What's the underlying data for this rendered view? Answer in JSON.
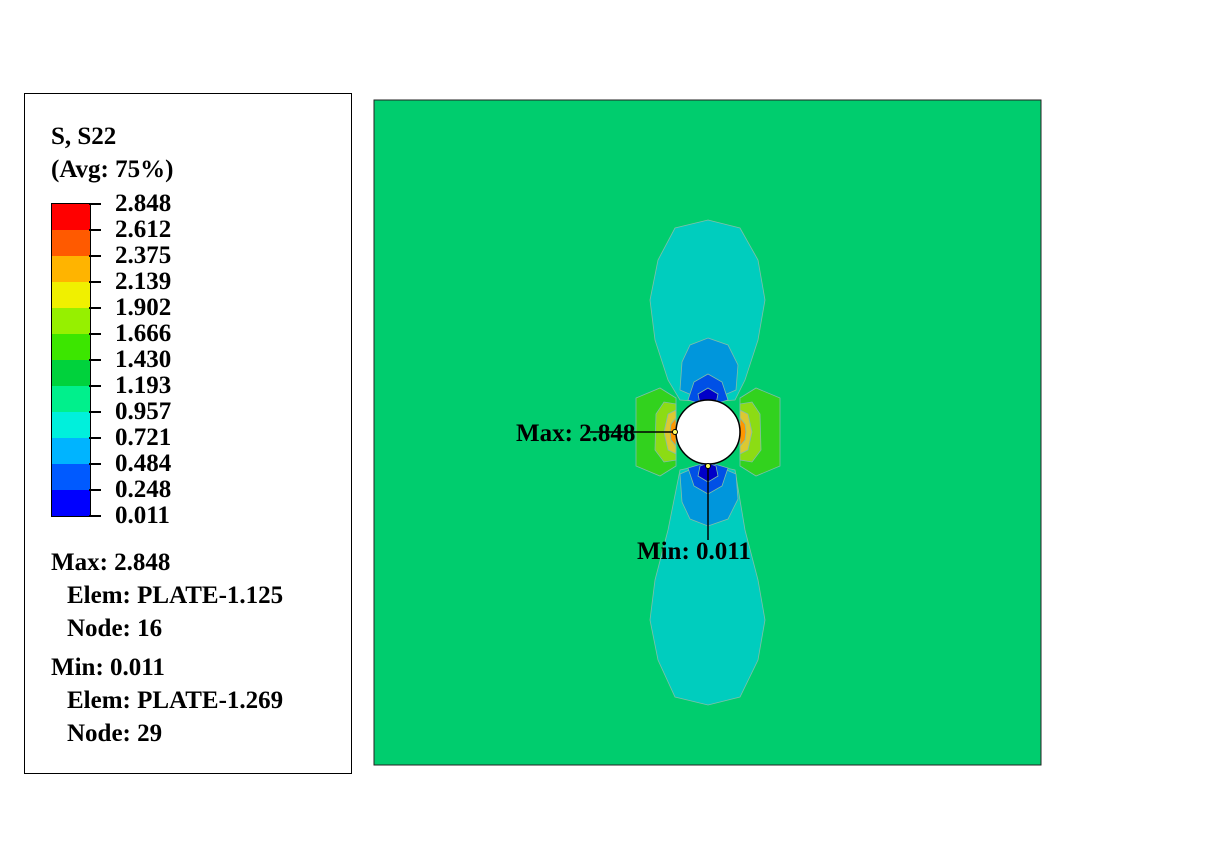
{
  "legend": {
    "title": "S, S22",
    "averaging": "(Avg: 75%)",
    "ticks": [
      "2.848",
      "2.612",
      "2.375",
      "2.139",
      "1.902",
      "1.666",
      "1.430",
      "1.193",
      "0.957",
      "0.721",
      "0.484",
      "0.248",
      "0.011"
    ],
    "colors": [
      "#ff0000",
      "#ff5a00",
      "#ffb400",
      "#f0f000",
      "#96f000",
      "#3ce600",
      "#00d23c",
      "#00f08c",
      "#00f0dc",
      "#00b4ff",
      "#005aff",
      "#0000ff"
    ],
    "max": {
      "label": "Max: 2.848",
      "elem": "Elem: PLATE-1.125",
      "node": "Node: 16"
    },
    "min": {
      "label": "Min: 0.011",
      "elem": "Elem: PLATE-1.269",
      "node": "Node: 29"
    }
  },
  "plot": {
    "max_annotation": "Max: 2.848",
    "min_annotation": "Min: 0.011",
    "field_colors": {
      "background": "#00cd6e",
      "lobe_outer": "#00cdbe",
      "lobe_mid": "#0096dc",
      "lobe_inner": "#0050e6",
      "lobe_core": "#0000c8",
      "side_green": "#32d21e",
      "side_light": "#8cdc14",
      "side_yellow": "#dcc832",
      "side_orange": "#ff9600",
      "side_red": "#ff4600"
    }
  }
}
